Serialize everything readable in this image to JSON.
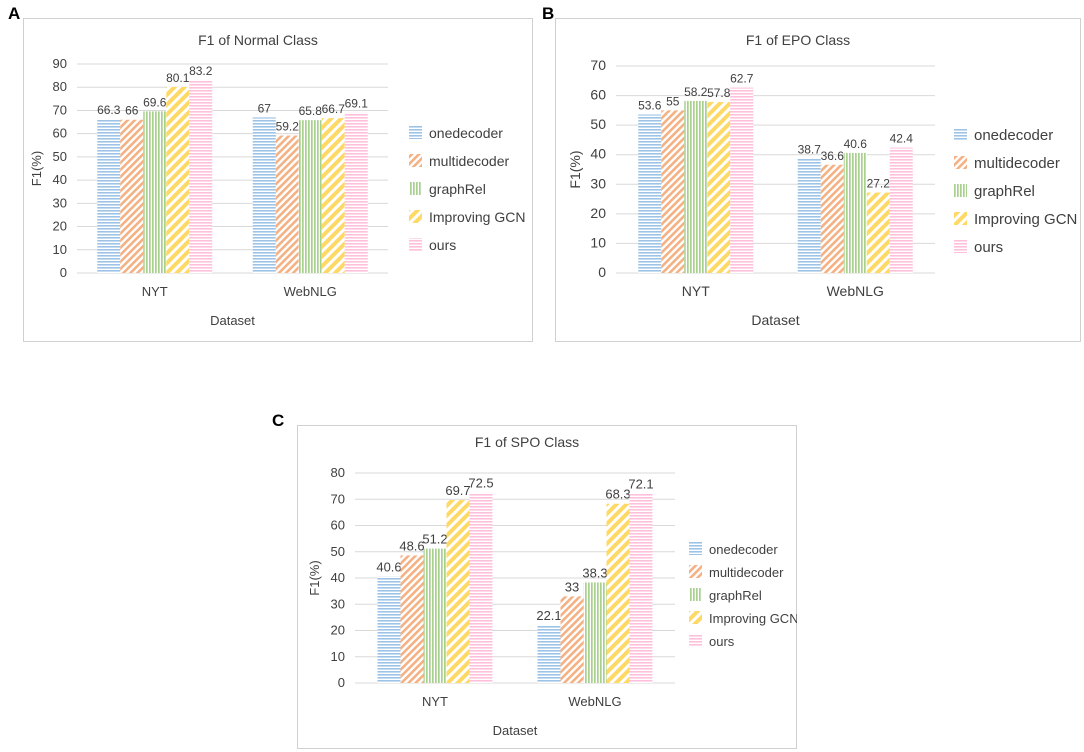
{
  "panel_labels": [
    "A",
    "B",
    "C"
  ],
  "colors": {
    "onedecoder": "#9dc3e6",
    "multidecoder": "#f4b183",
    "graphRel": "#a9d18e",
    "Improving GCN": "#ffd966",
    "ours": "#ffc0dc"
  },
  "chart_data": [
    {
      "type": "bar",
      "title": "F1 of Normal Class",
      "xlabel": "Dataset",
      "ylabel": "F1(%)",
      "ylim": [
        0,
        90
      ],
      "ytick_step": 10,
      "categories": [
        "NYT",
        "WebNLG"
      ],
      "series": [
        {
          "name": "onedecoder",
          "values": [
            66.3,
            67
          ]
        },
        {
          "name": "multidecoder",
          "values": [
            66,
            59.2
          ]
        },
        {
          "name": "graphRel",
          "values": [
            69.6,
            65.8
          ]
        },
        {
          "name": "Improving GCN",
          "values": [
            80.1,
            66.7
          ]
        },
        {
          "name": "ours",
          "values": [
            83.2,
            69.1
          ]
        }
      ],
      "labels": [
        [
          "66.3",
          "67"
        ],
        [
          "66",
          "59.2"
        ],
        [
          "69.6",
          "65.8"
        ],
        [
          "80.1",
          "66.7"
        ],
        [
          "83.2",
          "69.1"
        ]
      ],
      "legend": "right",
      "grid": true
    },
    {
      "type": "bar",
      "title": "F1 of EPO Class",
      "xlabel": "Dataset",
      "ylabel": "F1(%)",
      "ylim": [
        0,
        70
      ],
      "ytick_step": 10,
      "categories": [
        "NYT",
        "WebNLG"
      ],
      "series": [
        {
          "name": "onedecoder",
          "values": [
            53.6,
            38.7
          ]
        },
        {
          "name": "multidecoder",
          "values": [
            55,
            36.6
          ]
        },
        {
          "name": "graphRel",
          "values": [
            58.2,
            40.6
          ]
        },
        {
          "name": "Improving GCN",
          "values": [
            57.8,
            27.2
          ]
        },
        {
          "name": "ours",
          "values": [
            62.7,
            42.4
          ]
        }
      ],
      "labels": [
        [
          "53.6",
          "38.7"
        ],
        [
          "55",
          "36.6"
        ],
        [
          "58.2",
          "40.6"
        ],
        [
          "57.8",
          "27.2"
        ],
        [
          "62.7",
          "42.4"
        ]
      ],
      "legend": "right",
      "grid": true
    },
    {
      "type": "bar",
      "title": "F1 of SPO Class",
      "xlabel": "Dataset",
      "ylabel": "F1(%)",
      "ylim": [
        0,
        80
      ],
      "ytick_step": 10,
      "categories": [
        "NYT",
        "WebNLG"
      ],
      "series": [
        {
          "name": "onedecoder",
          "values": [
            40.6,
            22.1
          ]
        },
        {
          "name": "multidecoder",
          "values": [
            48.6,
            33
          ]
        },
        {
          "name": "graphRel",
          "values": [
            51.2,
            38.3
          ]
        },
        {
          "name": "Improving GCN",
          "values": [
            69.7,
            68.3
          ]
        },
        {
          "name": "ours",
          "values": [
            72.5,
            72.1
          ]
        }
      ],
      "labels": [
        [
          "40.6",
          "22.1"
        ],
        [
          "48.6",
          "33"
        ],
        [
          "51.2",
          "38.3"
        ],
        [
          "69.7",
          "68.3"
        ],
        [
          "72.5",
          "72.1"
        ]
      ],
      "legend": "right",
      "grid": true
    }
  ]
}
